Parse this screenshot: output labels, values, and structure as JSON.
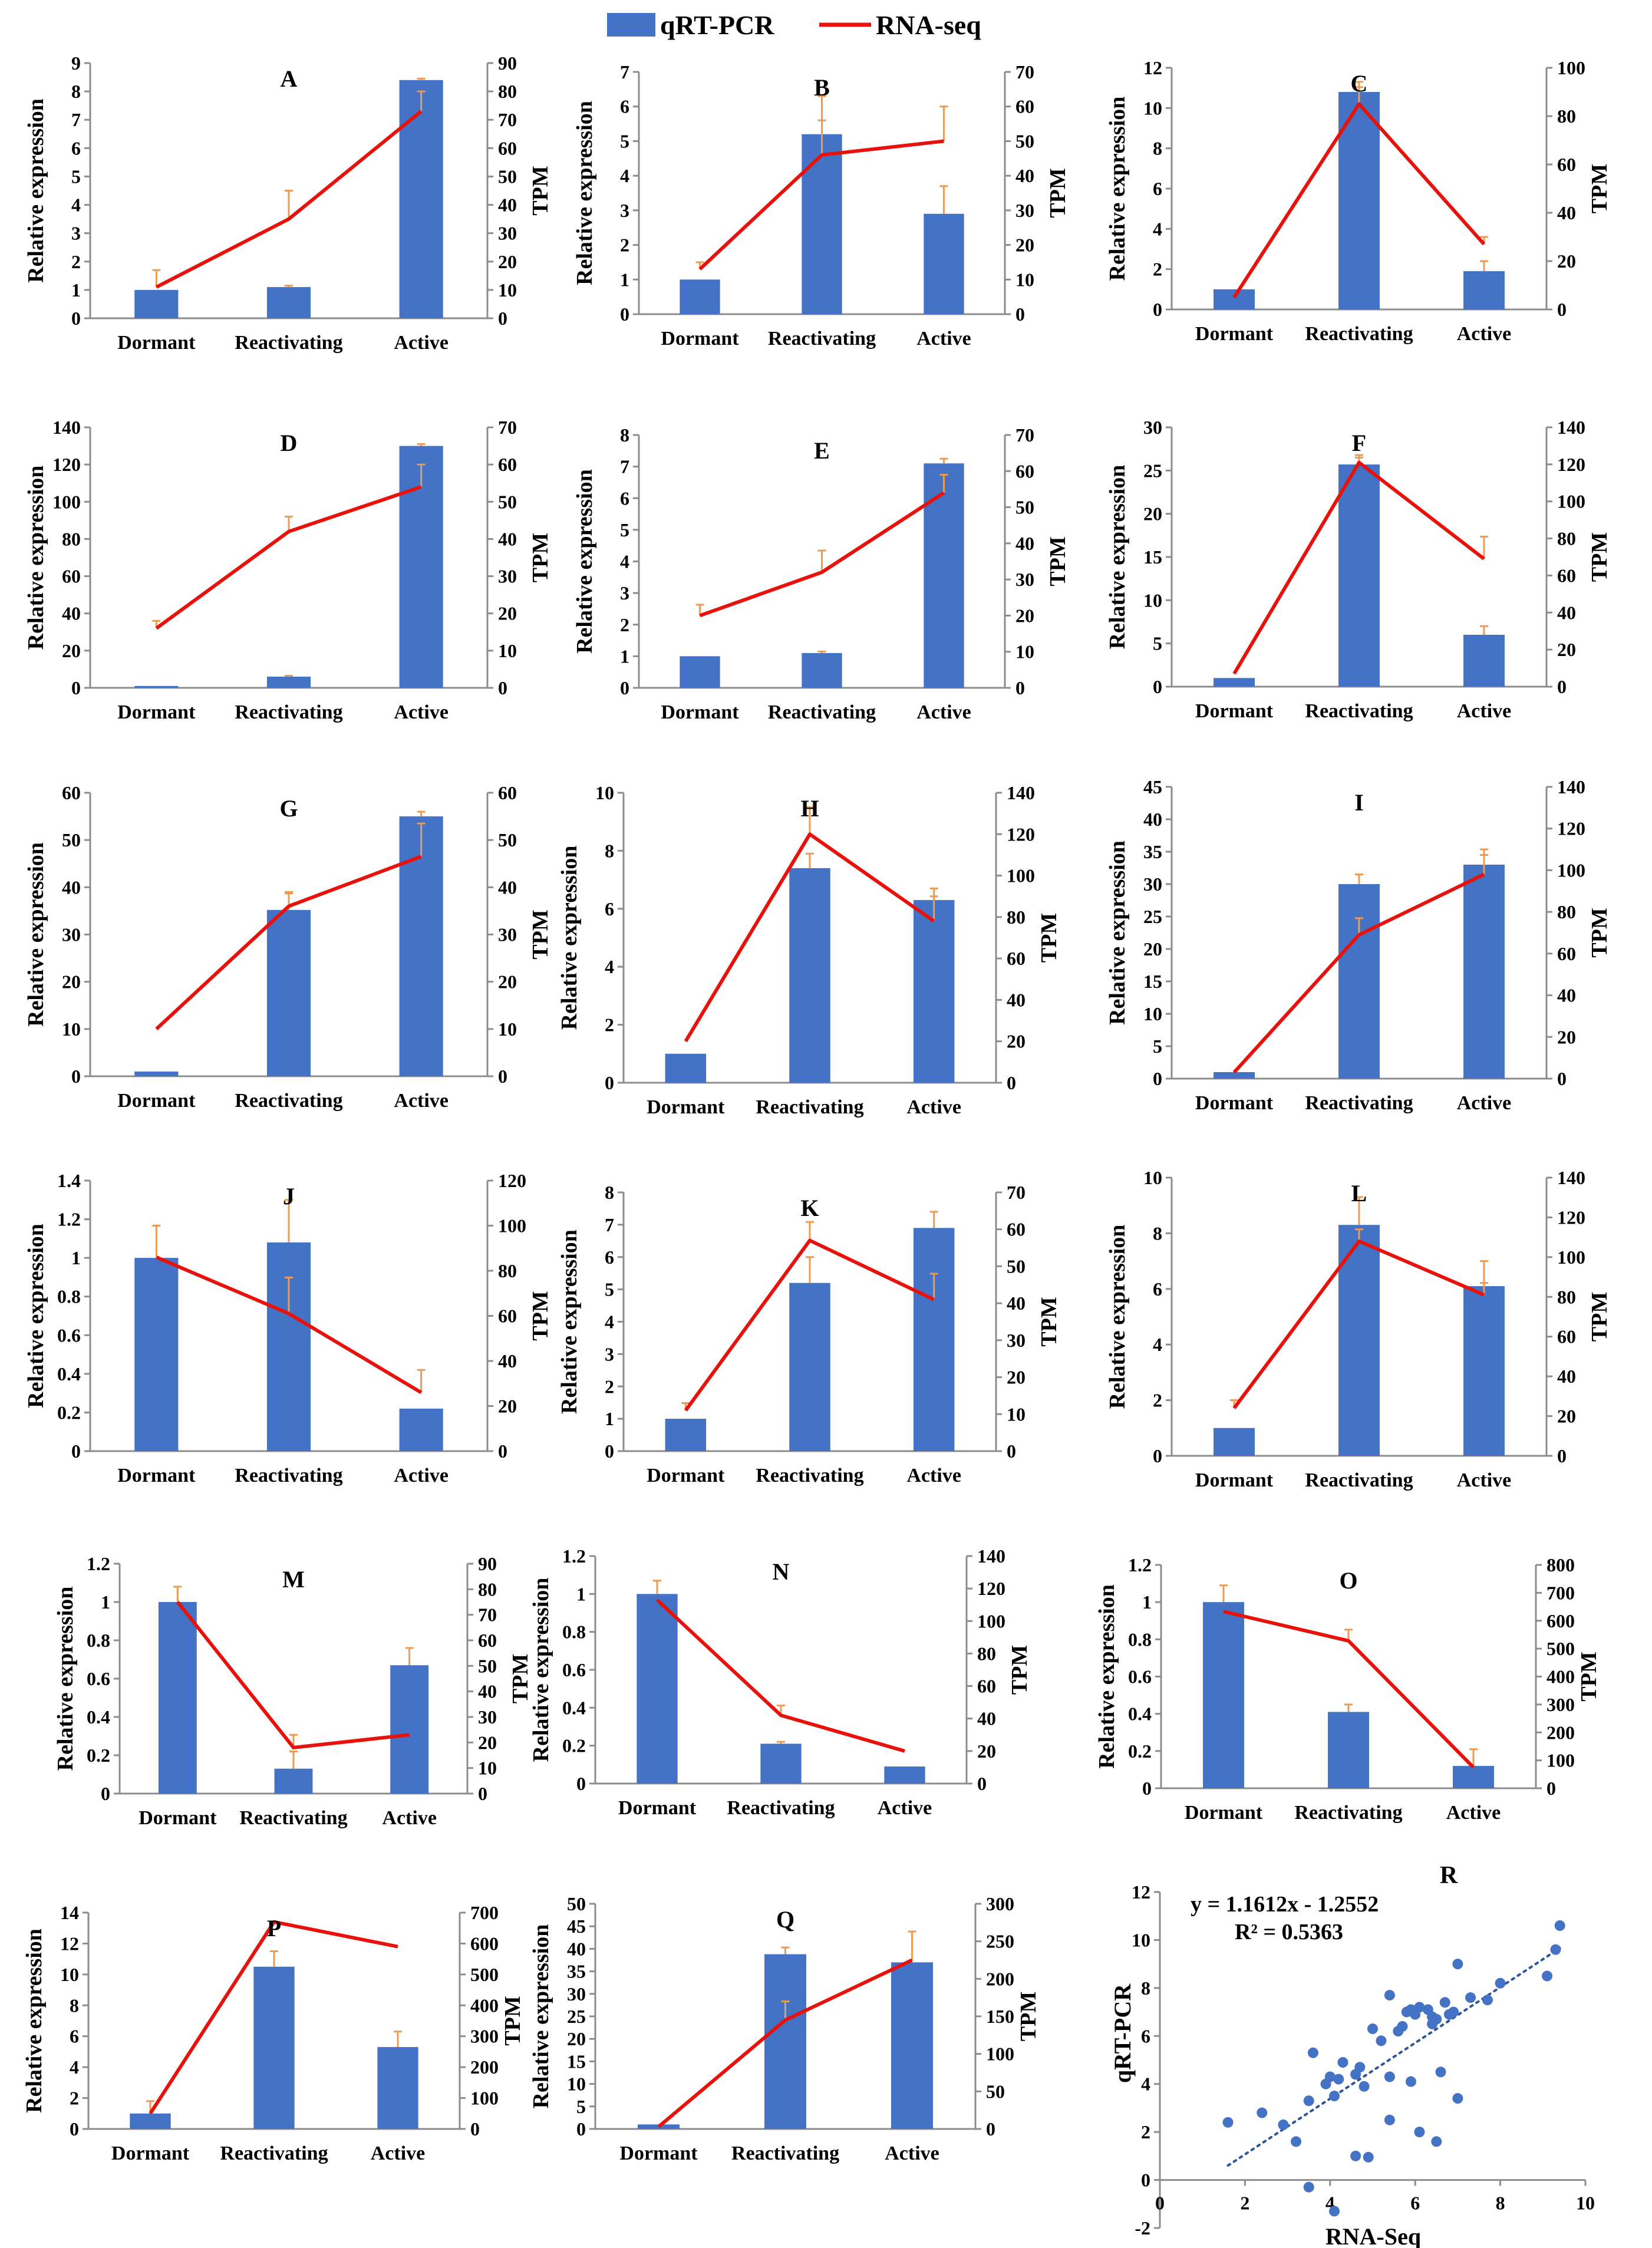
{
  "legend": {
    "bar_label": "qRT-PCR",
    "line_label": "RNA-seq",
    "bar_color": "#4472C4",
    "line_color": "#E8120C"
  },
  "colors": {
    "bar": "#4472C4",
    "line": "#E8120C",
    "error": "#ED9A52",
    "axis": "#8C8C8C",
    "trend": "#2E5597",
    "text": "#000000"
  },
  "axis_labels": {
    "left": "Relative expression",
    "right": "TPM"
  },
  "chart_data": [
    {
      "type": "bar+line",
      "panel": "A",
      "categories": [
        "Dormant",
        "Reactivating",
        "Active"
      ],
      "bar_values": [
        1,
        1.1,
        8.4
      ],
      "bar_errors": [
        0,
        0.05,
        0.05
      ],
      "line_values": [
        11,
        35,
        73
      ],
      "line_errors": [
        6,
        10,
        7
      ],
      "left_ticks": [
        "0",
        "1",
        "2",
        "3",
        "4",
        "5",
        "6",
        "7",
        "8",
        "9"
      ],
      "left_max": 9,
      "right_ticks": [
        "0",
        "10",
        "20",
        "30",
        "40",
        "50",
        "60",
        "70",
        "80",
        "90"
      ],
      "right_max": 90
    },
    {
      "type": "bar+line",
      "panel": "B",
      "categories": [
        "Dormant",
        "Reactivating",
        "Active"
      ],
      "bar_values": [
        1,
        5.2,
        2.9
      ],
      "bar_errors": [
        0,
        1.1,
        0.8
      ],
      "line_values": [
        13,
        46,
        50
      ],
      "line_errors": [
        2,
        10,
        10
      ],
      "left_ticks": [
        "0",
        "1",
        "2",
        "3",
        "4",
        "5",
        "6",
        "7"
      ],
      "left_max": 7,
      "right_ticks": [
        "0",
        "10",
        "20",
        "30",
        "40",
        "50",
        "60",
        "70"
      ],
      "right_max": 70
    },
    {
      "type": "bar+line",
      "panel": "C",
      "categories": [
        "Dormant",
        "Reactivating",
        "Active"
      ],
      "bar_values": [
        1,
        10.8,
        1.9
      ],
      "bar_errors": [
        0,
        0.5,
        0.5
      ],
      "line_values": [
        5,
        85,
        27
      ],
      "line_errors": [
        0,
        7,
        3
      ],
      "left_ticks": [
        "0",
        "2",
        "4",
        "6",
        "8",
        "10",
        "12"
      ],
      "left_max": 12,
      "right_ticks": [
        "0",
        "20",
        "40",
        "60",
        "80",
        "100"
      ],
      "right_max": 100
    },
    {
      "type": "bar+line",
      "panel": "D",
      "categories": [
        "Dormant",
        "Reactivating",
        "Active"
      ],
      "bar_values": [
        1,
        6,
        130
      ],
      "bar_errors": [
        0,
        0.5,
        1
      ],
      "line_values": [
        16,
        42,
        54
      ],
      "line_errors": [
        2,
        4,
        6
      ],
      "left_ticks": [
        "0",
        "20",
        "40",
        "60",
        "80",
        "100",
        "120",
        "140"
      ],
      "left_max": 140,
      "right_ticks": [
        "0",
        "10",
        "20",
        "30",
        "40",
        "50",
        "60",
        "70"
      ],
      "right_max": 70
    },
    {
      "type": "bar+line",
      "panel": "E",
      "categories": [
        "Dormant",
        "Reactivating",
        "Active"
      ],
      "bar_values": [
        1,
        1.1,
        7.1
      ],
      "bar_errors": [
        0,
        0.05,
        0.15
      ],
      "line_values": [
        20,
        32,
        54
      ],
      "line_errors": [
        3,
        6,
        5
      ],
      "left_ticks": [
        "0",
        "1",
        "2",
        "3",
        "4",
        "5",
        "6",
        "7",
        "8"
      ],
      "left_max": 8,
      "right_ticks": [
        "0",
        "10",
        "20",
        "30",
        "40",
        "50",
        "60",
        "70"
      ],
      "right_max": 70
    },
    {
      "type": "bar+line",
      "panel": "F",
      "categories": [
        "Dormant",
        "Reactivating",
        "Active"
      ],
      "bar_values": [
        1,
        25.7,
        6
      ],
      "bar_errors": [
        0,
        0.8,
        1
      ],
      "line_values": [
        7,
        121,
        69
      ],
      "line_errors": [
        0,
        4,
        12
      ],
      "left_ticks": [
        "0",
        "5",
        "10",
        "15",
        "20",
        "25",
        "30"
      ],
      "left_max": 30,
      "right_ticks": [
        "0",
        "20",
        "40",
        "60",
        "80",
        "100",
        "120",
        "140"
      ],
      "right_max": 140
    },
    {
      "type": "bar+line",
      "panel": "G",
      "categories": [
        "Dormant",
        "Reactivating",
        "Active"
      ],
      "bar_values": [
        1,
        35.2,
        55
      ],
      "bar_errors": [
        0,
        3.5,
        1
      ],
      "line_values": [
        10,
        36,
        46.5
      ],
      "line_errors": [
        0,
        3,
        7
      ],
      "left_ticks": [
        "0",
        "10",
        "20",
        "30",
        "40",
        "50",
        "60"
      ],
      "left_max": 60,
      "right_ticks": [
        "0",
        "10",
        "20",
        "30",
        "40",
        "50",
        "60"
      ],
      "right_max": 60
    },
    {
      "type": "bar+line",
      "panel": "H",
      "categories": [
        "Dormant",
        "Reactivating",
        "Active"
      ],
      "bar_values": [
        1,
        7.4,
        6.3
      ],
      "bar_errors": [
        0,
        0.5,
        0.4
      ],
      "line_values": [
        20,
        120,
        78
      ],
      "line_errors": [
        0,
        13,
        12
      ],
      "left_ticks": [
        "0",
        "2",
        "4",
        "6",
        "8",
        "10"
      ],
      "left_max": 10,
      "right_ticks": [
        "0",
        "20",
        "40",
        "60",
        "80",
        "100",
        "120",
        "140"
      ],
      "right_max": 140
    },
    {
      "type": "bar+line",
      "panel": "I",
      "categories": [
        "Dormant",
        "Reactivating",
        "Active"
      ],
      "bar_values": [
        1,
        30,
        33
      ],
      "bar_errors": [
        0,
        1.5,
        1.5
      ],
      "line_values": [
        3,
        69,
        98
      ],
      "line_errors": [
        0,
        8,
        12
      ],
      "left_ticks": [
        "0",
        "5",
        "10",
        "15",
        "20",
        "25",
        "30",
        "35",
        "40",
        "45"
      ],
      "left_max": 45,
      "right_ticks": [
        "0",
        "20",
        "40",
        "60",
        "80",
        "100",
        "120",
        "140"
      ],
      "right_max": 140
    },
    {
      "type": "bar+line",
      "panel": "J",
      "categories": [
        "Dormant",
        "Reactivating",
        "Active"
      ],
      "bar_values": [
        1,
        1.08,
        0.22
      ],
      "bar_errors": [
        0,
        0.22,
        0
      ],
      "line_values": [
        86,
        61,
        26
      ],
      "line_errors": [
        14,
        16,
        10
      ],
      "left_ticks": [
        "0",
        "0.2",
        "0.4",
        "0.6",
        "0.8",
        "1",
        "1.2",
        "1.4"
      ],
      "left_max": 1.4,
      "right_ticks": [
        "0",
        "20",
        "40",
        "60",
        "80",
        "100",
        "120"
      ],
      "right_max": 120
    },
    {
      "type": "bar+line",
      "panel": "K",
      "categories": [
        "Dormant",
        "Reactivating",
        "Active"
      ],
      "bar_values": [
        1,
        5.2,
        6.9
      ],
      "bar_errors": [
        0,
        0.8,
        0.5
      ],
      "line_values": [
        11,
        57,
        41
      ],
      "line_errors": [
        2,
        5,
        7
      ],
      "left_ticks": [
        "0",
        "1",
        "2",
        "3",
        "4",
        "5",
        "6",
        "7",
        "8"
      ],
      "left_max": 8,
      "right_ticks": [
        "0",
        "10",
        "20",
        "30",
        "40",
        "50",
        "60",
        "70"
      ],
      "right_max": 70
    },
    {
      "type": "bar+line",
      "panel": "L",
      "categories": [
        "Dormant",
        "Reactivating",
        "Active"
      ],
      "bar_values": [
        1,
        8.3,
        6.1
      ],
      "bar_errors": [
        0,
        1,
        0.9
      ],
      "line_values": [
        24,
        108,
        81
      ],
      "line_errors": [
        4,
        6,
        6
      ],
      "left_ticks": [
        "0",
        "2",
        "4",
        "6",
        "8",
        "10"
      ],
      "left_max": 10,
      "right_ticks": [
        "0",
        "20",
        "40",
        "60",
        "80",
        "100",
        "120",
        "140"
      ],
      "right_max": 140
    },
    {
      "type": "bar+line",
      "panel": "M",
      "categories": [
        "Dormant",
        "Reactivating",
        "Active"
      ],
      "bar_values": [
        1,
        0.13,
        0.67
      ],
      "bar_errors": [
        0,
        0.09,
        0.09
      ],
      "line_values": [
        75,
        18,
        23
      ],
      "line_errors": [
        6,
        5,
        0
      ],
      "left_ticks": [
        "0",
        "0.2",
        "0.4",
        "0.6",
        "0.8",
        "1",
        "1.2"
      ],
      "left_max": 1.2,
      "right_ticks": [
        "0",
        "10",
        "20",
        "30",
        "40",
        "50",
        "60",
        "70",
        "80",
        "90"
      ],
      "right_max": 90
    },
    {
      "type": "bar+line",
      "panel": "N",
      "categories": [
        "Dormant",
        "Reactivating",
        "Active"
      ],
      "bar_values": [
        1,
        0.21,
        0.09
      ],
      "bar_errors": [
        0.07,
        0.01,
        0
      ],
      "line_values": [
        113,
        42,
        20
      ],
      "line_errors": [
        0,
        6,
        0
      ],
      "left_ticks": [
        "0",
        "0.2",
        "0.4",
        "0.6",
        "0.8",
        "1",
        "1.2"
      ],
      "left_max": 1.2,
      "right_ticks": [
        "0",
        "20",
        "40",
        "60",
        "80",
        "100",
        "120",
        "140"
      ],
      "right_max": 140
    },
    {
      "type": "bar+line",
      "panel": "O",
      "categories": [
        "Dormant",
        "Reactivating",
        "Active"
      ],
      "bar_values": [
        1,
        0.41,
        0.12
      ],
      "bar_errors": [
        0.09,
        0.04,
        0.09
      ],
      "line_values": [
        633,
        528,
        75
      ],
      "line_errors": [
        0,
        40,
        0
      ],
      "left_ticks": [
        "0",
        "0.2",
        "0.4",
        "0.6",
        "0.8",
        "1",
        "1.2"
      ],
      "left_max": 1.2,
      "right_ticks": [
        "0",
        "100",
        "200",
        "300",
        "400",
        "500",
        "600",
        "700",
        "800"
      ],
      "right_max": 800
    },
    {
      "type": "bar+line",
      "panel": "P",
      "categories": [
        "Dormant",
        "Reactivating",
        "Active"
      ],
      "bar_values": [
        1,
        10.5,
        5.3
      ],
      "bar_errors": [
        0.8,
        1,
        1
      ],
      "line_values": [
        50,
        670,
        590
      ],
      "line_errors": [
        0,
        0,
        0
      ],
      "left_ticks": [
        "0",
        "2",
        "4",
        "6",
        "8",
        "10",
        "12",
        "14"
      ],
      "left_max": 14,
      "right_ticks": [
        "0",
        "100",
        "200",
        "300",
        "400",
        "500",
        "600",
        "700"
      ],
      "right_max": 700
    },
    {
      "type": "bar+line",
      "panel": "Q",
      "categories": [
        "Dormant",
        "Reactivating",
        "Active"
      ],
      "bar_values": [
        1,
        38.8,
        37
      ],
      "bar_errors": [
        0,
        1.5,
        0
      ],
      "line_values": [
        3,
        145,
        225
      ],
      "line_errors": [
        0,
        25,
        38
      ],
      "left_ticks": [
        "0",
        "5",
        "10",
        "15",
        "20",
        "25",
        "30",
        "35",
        "40",
        "45",
        "50"
      ],
      "left_max": 50,
      "right_ticks": [
        "0",
        "50",
        "100",
        "150",
        "200",
        "250",
        "300"
      ],
      "right_max": 300
    },
    {
      "type": "scatter",
      "panel": "R",
      "xlabel": "RNA-Seq",
      "ylabel": "qRT-PCR",
      "equation": "y = 1.1612x - 1.2552",
      "r2": "R² = 0.5363",
      "slope": 1.1612,
      "intercept": -1.2552,
      "xlim": [
        0,
        10
      ],
      "ylim": [
        -2,
        12
      ],
      "x_ticks": [
        "0",
        "2",
        "4",
        "6",
        "8",
        "10"
      ],
      "y_ticks": [
        "-2",
        "0",
        "2",
        "4",
        "6",
        "8",
        "10",
        "12"
      ],
      "points": [
        [
          1.6,
          2.4
        ],
        [
          2.4,
          2.8
        ],
        [
          2.9,
          2.3
        ],
        [
          3.2,
          1.6
        ],
        [
          3.5,
          3.3
        ],
        [
          3.6,
          5.3
        ],
        [
          3.9,
          4.0
        ],
        [
          4.2,
          4.2
        ],
        [
          4.3,
          4.9
        ],
        [
          4.0,
          4.3
        ],
        [
          4.1,
          3.5
        ],
        [
          4.6,
          4.4
        ],
        [
          4.7,
          4.7
        ],
        [
          4.8,
          3.9
        ],
        [
          4.6,
          1.0
        ],
        [
          4.9,
          0.95
        ],
        [
          5.0,
          6.3
        ],
        [
          5.2,
          5.8
        ],
        [
          5.4,
          4.3
        ],
        [
          5.4,
          2.5
        ],
        [
          5.4,
          7.7
        ],
        [
          5.6,
          6.2
        ],
        [
          5.7,
          6.4
        ],
        [
          5.8,
          7.0
        ],
        [
          5.9,
          4.1
        ],
        [
          5.9,
          7.1
        ],
        [
          6.0,
          6.9
        ],
        [
          6.1,
          2.0
        ],
        [
          6.1,
          7.2
        ],
        [
          6.3,
          7.1
        ],
        [
          6.4,
          6.8
        ],
        [
          6.4,
          6.5
        ],
        [
          6.5,
          1.6
        ],
        [
          6.5,
          6.7
        ],
        [
          6.6,
          4.5
        ],
        [
          6.7,
          7.4
        ],
        [
          6.8,
          6.9
        ],
        [
          6.9,
          7.0
        ],
        [
          7.0,
          3.4
        ],
        [
          7.0,
          9.0
        ],
        [
          7.3,
          7.6
        ],
        [
          7.7,
          7.5
        ],
        [
          8.0,
          8.2
        ],
        [
          9.1,
          8.5
        ],
        [
          9.3,
          9.6
        ],
        [
          9.4,
          10.6
        ],
        [
          3.5,
          -0.3
        ],
        [
          4.1,
          -1.3
        ]
      ]
    }
  ]
}
